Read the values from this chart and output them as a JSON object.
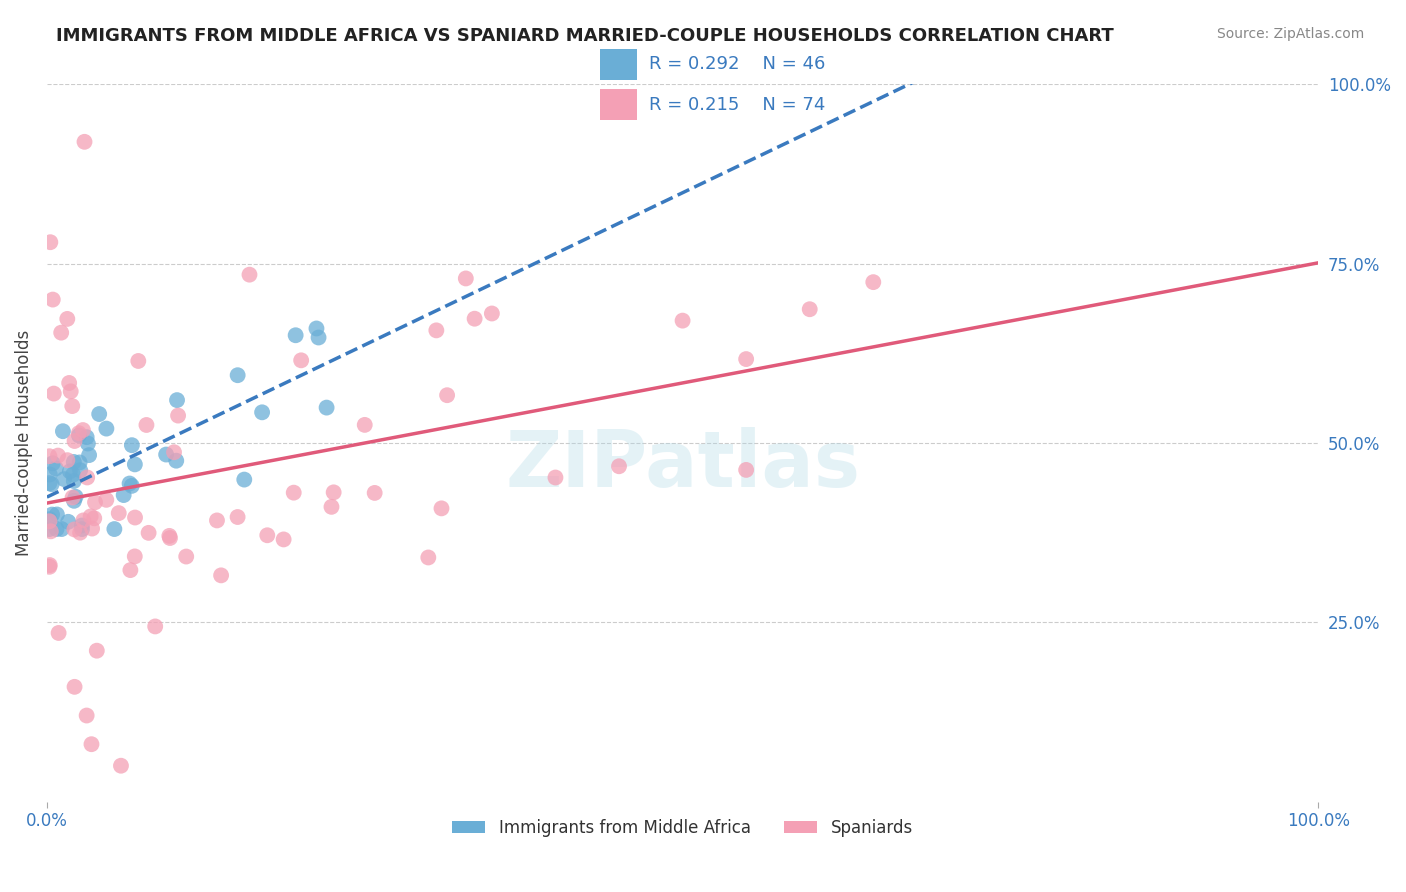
{
  "title": "IMMIGRANTS FROM MIDDLE AFRICA VS SPANIARD MARRIED-COUPLE HOUSEHOLDS CORRELATION CHART",
  "source": "Source: ZipAtlas.com",
  "ylabel": "Married-couple Households",
  "R_blue": 0.292,
  "N_blue": 46,
  "R_pink": 0.215,
  "N_pink": 74,
  "xlim": [
    0.0,
    1.0
  ],
  "ylim": [
    0.0,
    1.0
  ],
  "xtick_labels": [
    "0.0%",
    "100.0%"
  ],
  "ytick_labels_right": [
    "25.0%",
    "50.0%",
    "75.0%",
    "100.0%"
  ],
  "ytick_vals_right": [
    0.25,
    0.5,
    0.75,
    1.0
  ],
  "watermark": "ZIPatlas",
  "blue_color": "#6aaed6",
  "pink_color": "#f4a0b5",
  "blue_line_color": "#3a7abf",
  "pink_line_color": "#e05a7a",
  "title_color": "#222222",
  "title_fontsize": 13,
  "axis_label_color": "#3a7abf",
  "legend_label_color": "#3a7abf"
}
